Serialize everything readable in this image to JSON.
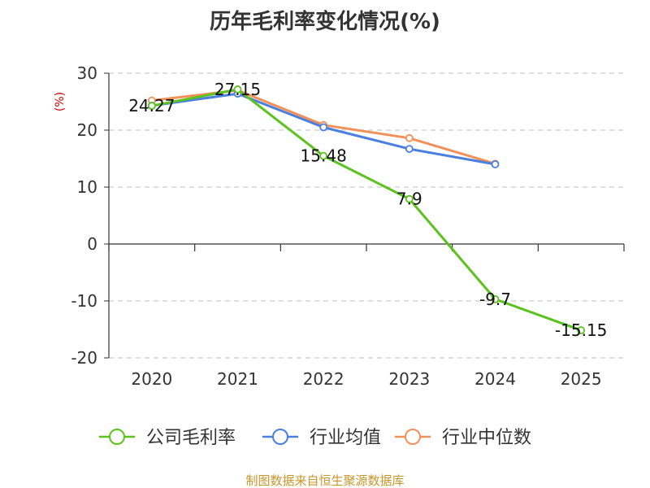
{
  "chart_data": {
    "type": "line",
    "title": "历年毛利率变化情况(%)",
    "ylabel": "(%)",
    "xlabel": "",
    "ylim": [
      -20,
      30
    ],
    "yticks": [
      30,
      20,
      10,
      0,
      -10,
      -20
    ],
    "categories": [
      "2020",
      "2021",
      "2022",
      "2023",
      "2024",
      "2025"
    ],
    "grid": true,
    "legend_position": "bottom",
    "series": [
      {
        "name": "公司毛利率",
        "color": "#5cc21e",
        "values": [
          24.27,
          27.15,
          15.48,
          7.9,
          -9.7,
          -15.15
        ],
        "labels": [
          "24.27",
          "27.15",
          "15.48",
          "7.9",
          "-9.7",
          "-15.15"
        ]
      },
      {
        "name": "行业均值",
        "color": "#4a7fe0",
        "values": [
          24.3,
          26.4,
          20.5,
          16.7,
          14.0,
          null
        ]
      },
      {
        "name": "行业中位数",
        "color": "#f2905a",
        "values": [
          25.2,
          27.0,
          20.9,
          18.6,
          14.1,
          null
        ]
      }
    ]
  },
  "source_text": "制图数据来自恒生聚源数据库"
}
